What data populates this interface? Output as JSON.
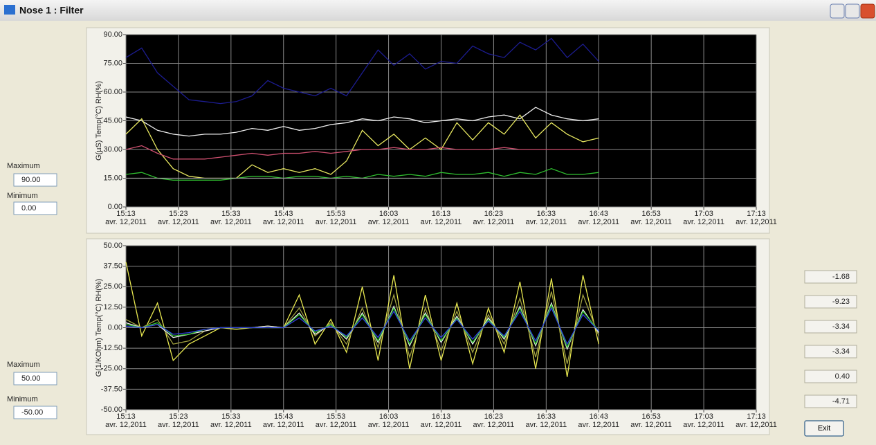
{
  "window": {
    "title": "Nose 1 : Filter"
  },
  "controls": [
    {
      "max_label": "Maximum",
      "max": "90.00",
      "min_label": "Minimum",
      "min": "0.00"
    },
    {
      "max_label": "Maximum",
      "max": "50.00",
      "min_label": "Minimum",
      "min": "-50.00"
    }
  ],
  "readouts": [
    "-1.68",
    "-9.23",
    "-3.34",
    "-3.34",
    "0.40",
    "-4.71"
  ],
  "exit_button": "Exit",
  "chart_data": [
    {
      "type": "line",
      "y_label": "G(µS)  Temp(°C)  RH(%)",
      "grid": true,
      "xlim": [
        "2011-04-12T15:13",
        "2011-04-12T17:13"
      ],
      "xticks": [
        {
          "value": "2011-04-12T15:13",
          "label": [
            "15:13",
            "avr. 12,2011"
          ]
        },
        {
          "value": "2011-04-12T15:23",
          "label": [
            "15:23",
            "avr. 12,2011"
          ]
        },
        {
          "value": "2011-04-12T15:33",
          "label": [
            "15:33",
            "avr. 12,2011"
          ]
        },
        {
          "value": "2011-04-12T15:43",
          "label": [
            "15:43",
            "avr. 12,2011"
          ]
        },
        {
          "value": "2011-04-12T15:53",
          "label": [
            "15:53",
            "avr. 12,2011"
          ]
        },
        {
          "value": "2011-04-12T16:03",
          "label": [
            "16:03",
            "avr. 12,2011"
          ]
        },
        {
          "value": "2011-04-12T16:13",
          "label": [
            "16:13",
            "avr. 12,2011"
          ]
        },
        {
          "value": "2011-04-12T16:23",
          "label": [
            "16:23",
            "avr. 12,2011"
          ]
        },
        {
          "value": "2011-04-12T16:33",
          "label": [
            "16:33",
            "avr. 12,2011"
          ]
        },
        {
          "value": "2011-04-12T16:43",
          "label": [
            "16:43",
            "avr. 12,2011"
          ]
        },
        {
          "value": "2011-04-12T16:53",
          "label": [
            "16:53",
            "avr. 12,2011"
          ]
        },
        {
          "value": "2011-04-12T17:03",
          "label": [
            "17:03",
            "avr. 12,2011"
          ]
        },
        {
          "value": "2011-04-12T17:13",
          "label": [
            "17:13",
            "avr. 12,2011"
          ]
        }
      ],
      "ylim": [
        0,
        90
      ],
      "yticks": [
        {
          "value": 0,
          "label": "0.00"
        },
        {
          "value": 15,
          "label": "15.00"
        },
        {
          "value": 30,
          "label": "30.00"
        },
        {
          "value": 45,
          "label": "45.00"
        },
        {
          "value": 60,
          "label": "60.00"
        },
        {
          "value": 75,
          "label": "75.00"
        },
        {
          "value": 90,
          "label": "90.00"
        }
      ],
      "x": [
        "2011-04-12T15:13",
        "2011-04-12T15:16",
        "2011-04-12T15:19",
        "2011-04-12T15:22",
        "2011-04-12T15:25",
        "2011-04-12T15:28",
        "2011-04-12T15:31",
        "2011-04-12T15:34",
        "2011-04-12T15:37",
        "2011-04-12T15:40",
        "2011-04-12T15:43",
        "2011-04-12T15:46",
        "2011-04-12T15:49",
        "2011-04-12T15:52",
        "2011-04-12T15:55",
        "2011-04-12T15:58",
        "2011-04-12T16:01",
        "2011-04-12T16:04",
        "2011-04-12T16:07",
        "2011-04-12T16:10",
        "2011-04-12T16:13",
        "2011-04-12T16:16",
        "2011-04-12T16:19",
        "2011-04-12T16:22",
        "2011-04-12T16:25",
        "2011-04-12T16:28",
        "2011-04-12T16:31",
        "2011-04-12T16:34",
        "2011-04-12T16:37",
        "2011-04-12T16:40",
        "2011-04-12T16:43"
      ],
      "series": [
        {
          "color": "#1c1c90",
          "values": [
            78,
            83,
            70,
            63,
            56,
            55,
            54,
            55,
            58,
            66,
            62,
            60,
            58,
            62,
            58,
            70,
            82,
            74,
            80,
            72,
            76,
            75,
            84,
            80,
            78,
            86,
            82,
            88,
            78,
            85,
            76
          ]
        },
        {
          "color": "#f0f0f0",
          "values": [
            47,
            45,
            40,
            38,
            37,
            38,
            38,
            39,
            41,
            40,
            42,
            40,
            41,
            43,
            44,
            46,
            45,
            47,
            46,
            44,
            45,
            46,
            45,
            47,
            48,
            46,
            52,
            48,
            46,
            45,
            46
          ]
        },
        {
          "color": "#e8e860",
          "values": [
            38,
            46,
            30,
            20,
            16,
            15,
            15,
            15,
            22,
            18,
            20,
            18,
            20,
            17,
            24,
            40,
            32,
            38,
            30,
            36,
            30,
            44,
            35,
            44,
            38,
            48,
            36,
            44,
            38,
            34,
            36
          ]
        },
        {
          "color": "#d05070",
          "values": [
            30,
            32,
            28,
            25,
            25,
            25,
            26,
            27,
            28,
            27,
            28,
            28,
            29,
            28,
            29,
            30,
            30,
            31,
            30,
            30,
            31,
            30,
            30,
            30,
            31,
            30,
            30,
            30,
            30,
            30,
            30
          ]
        },
        {
          "color": "#30c030",
          "values": [
            17,
            18,
            15,
            14,
            14,
            14,
            14,
            15,
            16,
            16,
            15,
            16,
            16,
            15,
            16,
            15,
            17,
            16,
            17,
            16,
            18,
            17,
            17,
            18,
            16,
            18,
            17,
            20,
            17,
            17,
            18
          ]
        },
        {
          "color": "#a0a0a0",
          "values": [
            15,
            15,
            15,
            15,
            15,
            15,
            15,
            15,
            15,
            15,
            15,
            15,
            15,
            15,
            15,
            15,
            15,
            15,
            15,
            15,
            15,
            15,
            15,
            15,
            15,
            15,
            15,
            15,
            15,
            15,
            15
          ]
        }
      ]
    },
    {
      "type": "line",
      "y_label": "G(1/KOhm)  Temp(°C)  RH(%)",
      "grid": true,
      "xlim": [
        "2011-04-12T15:13",
        "2011-04-12T17:13"
      ],
      "xticks": [
        {
          "value": "2011-04-12T15:13",
          "label": [
            "15:13",
            "avr. 12,2011"
          ]
        },
        {
          "value": "2011-04-12T15:23",
          "label": [
            "15:23",
            "avr. 12,2011"
          ]
        },
        {
          "value": "2011-04-12T15:33",
          "label": [
            "15:33",
            "avr. 12,2011"
          ]
        },
        {
          "value": "2011-04-12T15:43",
          "label": [
            "15:43",
            "avr. 12,2011"
          ]
        },
        {
          "value": "2011-04-12T15:53",
          "label": [
            "15:53",
            "avr. 12,2011"
          ]
        },
        {
          "value": "2011-04-12T16:03",
          "label": [
            "16:03",
            "avr. 12,2011"
          ]
        },
        {
          "value": "2011-04-12T16:13",
          "label": [
            "16:13",
            "avr. 12,2011"
          ]
        },
        {
          "value": "2011-04-12T16:23",
          "label": [
            "16:23",
            "avr. 12,2011"
          ]
        },
        {
          "value": "2011-04-12T16:33",
          "label": [
            "16:33",
            "avr. 12,2011"
          ]
        },
        {
          "value": "2011-04-12T16:43",
          "label": [
            "16:43",
            "avr. 12,2011"
          ]
        },
        {
          "value": "2011-04-12T16:53",
          "label": [
            "16:53",
            "avr. 12,2011"
          ]
        },
        {
          "value": "2011-04-12T17:03",
          "label": [
            "17:03",
            "avr. 12,2011"
          ]
        },
        {
          "value": "2011-04-12T17:13",
          "label": [
            "17:13",
            "avr. 12,2011"
          ]
        }
      ],
      "ylim": [
        -50,
        50
      ],
      "yticks": [
        {
          "value": -50,
          "label": "-50.00"
        },
        {
          "value": -37.5,
          "label": "-37.50"
        },
        {
          "value": -25,
          "label": "-25.00"
        },
        {
          "value": -12.5,
          "label": "-12.50"
        },
        {
          "value": 0,
          "label": "0.00"
        },
        {
          "value": 12.5,
          "label": "12.50"
        },
        {
          "value": 25,
          "label": "25.00"
        },
        {
          "value": 37.5,
          "label": "37.50"
        },
        {
          "value": 50,
          "label": "50.00"
        }
      ],
      "x": [
        "2011-04-12T15:13",
        "2011-04-12T15:16",
        "2011-04-12T15:19",
        "2011-04-12T15:22",
        "2011-04-12T15:25",
        "2011-04-12T15:28",
        "2011-04-12T15:31",
        "2011-04-12T15:34",
        "2011-04-12T15:37",
        "2011-04-12T15:40",
        "2011-04-12T15:43",
        "2011-04-12T15:46",
        "2011-04-12T15:49",
        "2011-04-12T15:52",
        "2011-04-12T15:55",
        "2011-04-12T15:58",
        "2011-04-12T16:01",
        "2011-04-12T16:04",
        "2011-04-12T16:07",
        "2011-04-12T16:10",
        "2011-04-12T16:13",
        "2011-04-12T16:16",
        "2011-04-12T16:19",
        "2011-04-12T16:22",
        "2011-04-12T16:25",
        "2011-04-12T16:28",
        "2011-04-12T16:31",
        "2011-04-12T16:34",
        "2011-04-12T16:37",
        "2011-04-12T16:40",
        "2011-04-12T16:43"
      ],
      "series": [
        {
          "color": "#e8e850",
          "values": [
            40,
            -5,
            15,
            -20,
            -10,
            -5,
            0,
            -1,
            0,
            0,
            0,
            20,
            -10,
            5,
            -15,
            25,
            -20,
            32,
            -25,
            20,
            -20,
            15,
            -22,
            12,
            -15,
            28,
            -25,
            30,
            -30,
            32,
            -10
          ]
        },
        {
          "color": "#a0a040",
          "values": [
            5,
            0,
            5,
            -10,
            -8,
            -2,
            0,
            0,
            0,
            1,
            0,
            12,
            -5,
            3,
            -10,
            12,
            -12,
            20,
            -18,
            12,
            -14,
            10,
            -15,
            8,
            -10,
            18,
            -18,
            22,
            -22,
            20,
            -5
          ]
        },
        {
          "color": "#f0f0f0",
          "values": [
            3,
            0,
            2,
            -6,
            -4,
            -2,
            0,
            0,
            0,
            1,
            0,
            9,
            -4,
            2,
            -7,
            9,
            -9,
            13,
            -11,
            9,
            -9,
            7,
            -10,
            6,
            -7,
            13,
            -11,
            15,
            -13,
            11,
            -3
          ]
        },
        {
          "color": "#30c030",
          "values": [
            2,
            0,
            3,
            -5,
            -4,
            -1,
            0,
            0,
            0,
            0,
            0,
            8,
            -3,
            2,
            -6,
            8,
            -8,
            12,
            -10,
            8,
            -8,
            6,
            -9,
            5,
            -6,
            12,
            -10,
            14,
            -12,
            10,
            -2
          ]
        },
        {
          "color": "#3040e0",
          "values": [
            1,
            0,
            2,
            -4,
            -3,
            -1,
            0,
            0,
            0,
            0,
            0,
            6,
            -2,
            1,
            -5,
            6,
            -6,
            10,
            -8,
            6,
            -6,
            5,
            -7,
            4,
            -5,
            10,
            -8,
            12,
            -10,
            8,
            -2
          ]
        }
      ]
    }
  ]
}
